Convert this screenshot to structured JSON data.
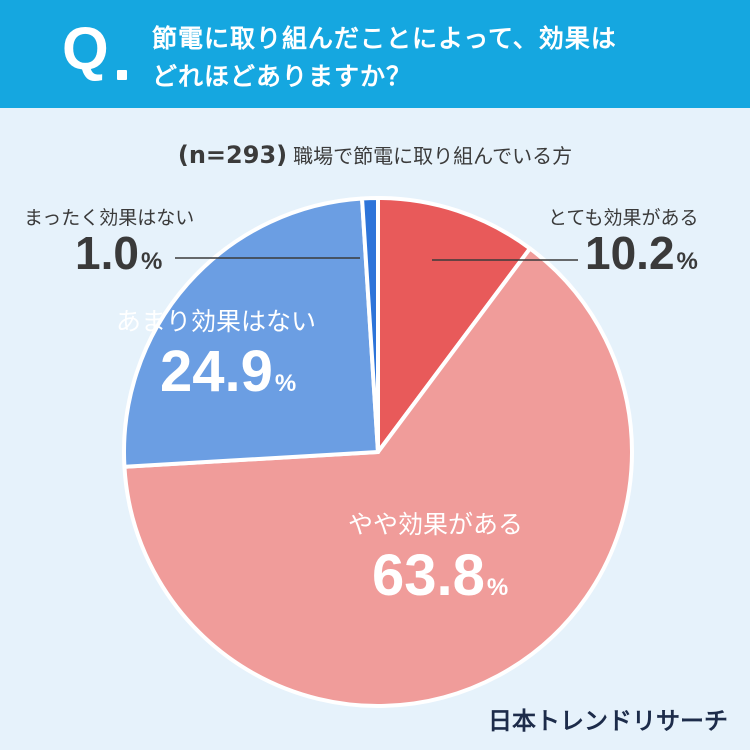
{
  "header": {
    "q_mark": "Q",
    "question_line1": "節電に取り組んだことによって、効果は",
    "question_line2": "どれほどありますか？"
  },
  "subtitle": {
    "n_label": "(n=293)",
    "text": "職場で節電に取り組んでいる方"
  },
  "chart_data": {
    "type": "pie",
    "title": "節電に取り組んだことによって、効果はどれほどありますか？",
    "subtitle": "(n=293) 職場で節電に取り組んでいる方",
    "start_angle_deg": 0,
    "direction": "clockwise",
    "unit": "%",
    "slices": [
      {
        "label": "とても効果がある",
        "value": 10.2,
        "display": "10.2",
        "color": "#e85a5a"
      },
      {
        "label": "やや効果がある",
        "value": 63.8,
        "display": "63.8",
        "color": "#f09c9a"
      },
      {
        "label": "あまり効果はない",
        "value": 24.9,
        "display": "24.9",
        "color": "#6b9ee3"
      },
      {
        "label": "まったく効果はない",
        "value": 1.0,
        "display": "1.0",
        "color": "#2d74d9"
      }
    ]
  },
  "logo": {
    "text": "日本トレンドリサーチ"
  }
}
